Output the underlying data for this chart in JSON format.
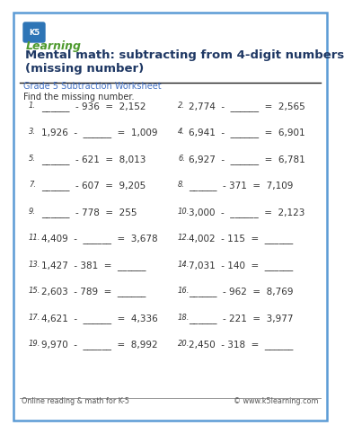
{
  "title_line1": "Mental math: subtracting from 4-digit numbers",
  "title_line2": "(missing number)",
  "subtitle": "Grade 5 Subtraction Worksheet",
  "instruction": "Find the missing number.",
  "border_color": "#5b9bd5",
  "title_color": "#1f3864",
  "subtitle_color": "#4472c4",
  "text_color": "#333333",
  "footer_left": "Online reading & math for K-5",
  "footer_right": "© www.k5learning.com",
  "problems_left": [
    {
      "num": "1.",
      "expr": "______  - 936  =  2,152"
    },
    {
      "num": "3.",
      "expr": "1,926  -  ______  =  1,009"
    },
    {
      "num": "5.",
      "expr": "______  - 621  =  8,013"
    },
    {
      "num": "7.",
      "expr": "______  - 607  =  9,205"
    },
    {
      "num": "9.",
      "expr": "______  - 778  =  255"
    },
    {
      "num": "11.",
      "expr": "4,409  -  ______  =  3,678"
    },
    {
      "num": "13.",
      "expr": "1,427  - 381  =  ______"
    },
    {
      "num": "15.",
      "expr": "2,603  - 789  =  ______"
    },
    {
      "num": "17.",
      "expr": "4,621  -  ______  =  4,336"
    },
    {
      "num": "19.",
      "expr": "9,970  -  ______  =  8,992"
    }
  ],
  "problems_right": [
    {
      "num": "2.",
      "expr": "2,774  -  ______  =  2,565"
    },
    {
      "num": "4.",
      "expr": "6,941  -  ______  =  6,901"
    },
    {
      "num": "6.",
      "expr": "6,927  -  ______  =  6,781"
    },
    {
      "num": "8.",
      "expr": "______  - 371  =  7,109"
    },
    {
      "num": "10.",
      "expr": "3,000  -  ______  =  2,123"
    },
    {
      "num": "12.",
      "expr": "4,002  - 115  =  ______"
    },
    {
      "num": "14.",
      "expr": "7,031  - 140  =  ______"
    },
    {
      "num": "16.",
      "expr": "______  - 962  =  8,769"
    },
    {
      "num": "18.",
      "expr": "______  - 221  =  3,977"
    },
    {
      "num": "20.",
      "expr": "2,450  - 318  =  ______"
    }
  ],
  "bg_color": "#ffffff"
}
